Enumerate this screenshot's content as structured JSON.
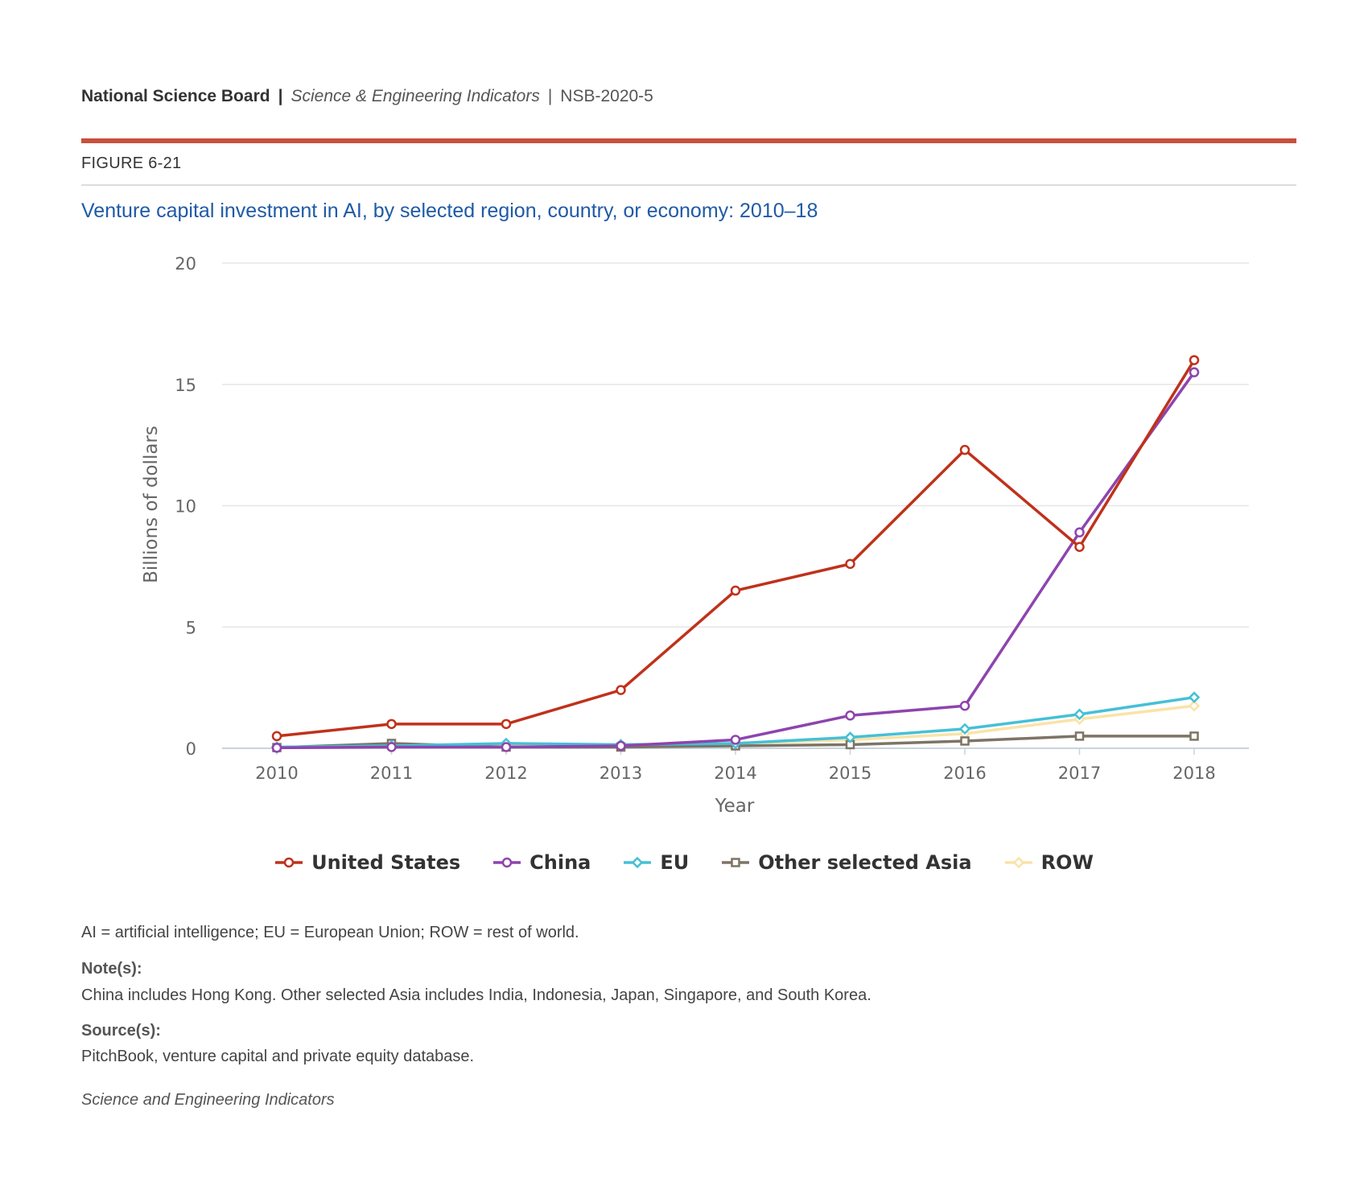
{
  "header": {
    "org": "National Science Board",
    "separator": "|",
    "publication": "Science & Engineering Indicators",
    "code": "NSB-2020-5"
  },
  "figure_label": "FIGURE 6-21",
  "title": "Venture capital investment in AI, by selected region, country, or economy: 2010–18",
  "chart_data": {
    "type": "line",
    "title": "Venture capital investment in AI, by selected region, country, or economy: 2010–18",
    "xlabel": "Year",
    "ylabel": "Billions of dollars",
    "x": [
      "2010",
      "2011",
      "2012",
      "2013",
      "2014",
      "2015",
      "2016",
      "2017",
      "2018"
    ],
    "ylim": [
      0,
      20
    ],
    "yticks": [
      "0",
      "5",
      "10",
      "15",
      "20"
    ],
    "grid": true,
    "legend_position": "bottom",
    "series": [
      {
        "name": "United States",
        "color": "#c0311b",
        "marker": "circle",
        "values": [
          0.5,
          1.0,
          1.0,
          2.4,
          6.5,
          7.6,
          12.3,
          8.3,
          16.0
        ]
      },
      {
        "name": "China",
        "color": "#8e44ad",
        "marker": "circle",
        "values": [
          0.02,
          0.05,
          0.05,
          0.1,
          0.35,
          1.35,
          1.75,
          8.9,
          15.5
        ]
      },
      {
        "name": "EU",
        "color": "#45c0d6",
        "marker": "diamond",
        "values": [
          0.05,
          0.1,
          0.2,
          0.15,
          0.2,
          0.45,
          0.8,
          1.4,
          2.1
        ]
      },
      {
        "name": "Other selected Asia",
        "color": "#7d7465",
        "marker": "square",
        "values": [
          0.03,
          0.2,
          0.05,
          0.05,
          0.1,
          0.15,
          0.3,
          0.5,
          0.5
        ]
      },
      {
        "name": "ROW",
        "color": "#f9e3a8",
        "marker": "diamond",
        "values": [
          0.04,
          0.08,
          0.1,
          0.15,
          0.2,
          0.35,
          0.6,
          1.2,
          1.75
        ]
      }
    ]
  },
  "footer": {
    "abbreviations": "AI = artificial intelligence; EU = European Union; ROW = rest of world.",
    "notes_heading": "Note(s):",
    "notes": "China includes Hong Kong. Other selected Asia includes India, Indonesia, Japan, Singapore, and South Korea.",
    "sources_heading": "Source(s):",
    "sources": "PitchBook, venture capital and private equity database.",
    "credit": "Science and Engineering Indicators"
  }
}
